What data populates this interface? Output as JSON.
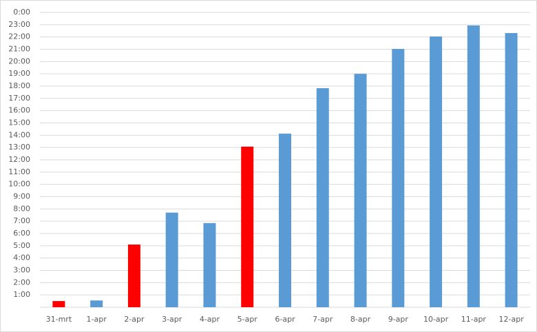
{
  "chart_data": {
    "type": "bar",
    "categories": [
      "31-mrt",
      "1-apr",
      "2-apr",
      "3-apr",
      "4-apr",
      "5-apr",
      "6-apr",
      "7-apr",
      "8-apr",
      "9-apr",
      "10-apr",
      "11-apr",
      "12-apr"
    ],
    "values": [
      0.5,
      0.55,
      5.1,
      7.7,
      6.85,
      13.07,
      14.13,
      17.83,
      19.0,
      21.03,
      22.04,
      22.94,
      22.32
    ],
    "colors": [
      "#ff0000",
      "#5b9bd5",
      "#ff0000",
      "#5b9bd5",
      "#5b9bd5",
      "#ff0000",
      "#5b9bd5",
      "#5b9bd5",
      "#5b9bd5",
      "#5b9bd5",
      "#5b9bd5",
      "#5b9bd5",
      "#5b9bd5"
    ],
    "ylim": [
      0,
      24
    ],
    "yticks": [
      {
        "value": 1,
        "label": "1:00"
      },
      {
        "value": 2,
        "label": "2:00"
      },
      {
        "value": 3,
        "label": "3:00"
      },
      {
        "value": 4,
        "label": "4:00"
      },
      {
        "value": 5,
        "label": "5:00"
      },
      {
        "value": 6,
        "label": "6:00"
      },
      {
        "value": 7,
        "label": "7:00"
      },
      {
        "value": 8,
        "label": "8:00"
      },
      {
        "value": 9,
        "label": "9:00"
      },
      {
        "value": 10,
        "label": "10:00"
      },
      {
        "value": 11,
        "label": "11:00"
      },
      {
        "value": 12,
        "label": "12:00"
      },
      {
        "value": 13,
        "label": "13:00"
      },
      {
        "value": 14,
        "label": "14:00"
      },
      {
        "value": 15,
        "label": "15:00"
      },
      {
        "value": 16,
        "label": "16:00"
      },
      {
        "value": 17,
        "label": "17:00"
      },
      {
        "value": 18,
        "label": "18:00"
      },
      {
        "value": 19,
        "label": "19:00"
      },
      {
        "value": 20,
        "label": "20:00"
      },
      {
        "value": 21,
        "label": "21:00"
      },
      {
        "value": 22,
        "label": "22:00"
      },
      {
        "value": 23,
        "label": "23:00"
      },
      {
        "value": 24,
        "label": "0:00"
      }
    ],
    "grid": true
  }
}
